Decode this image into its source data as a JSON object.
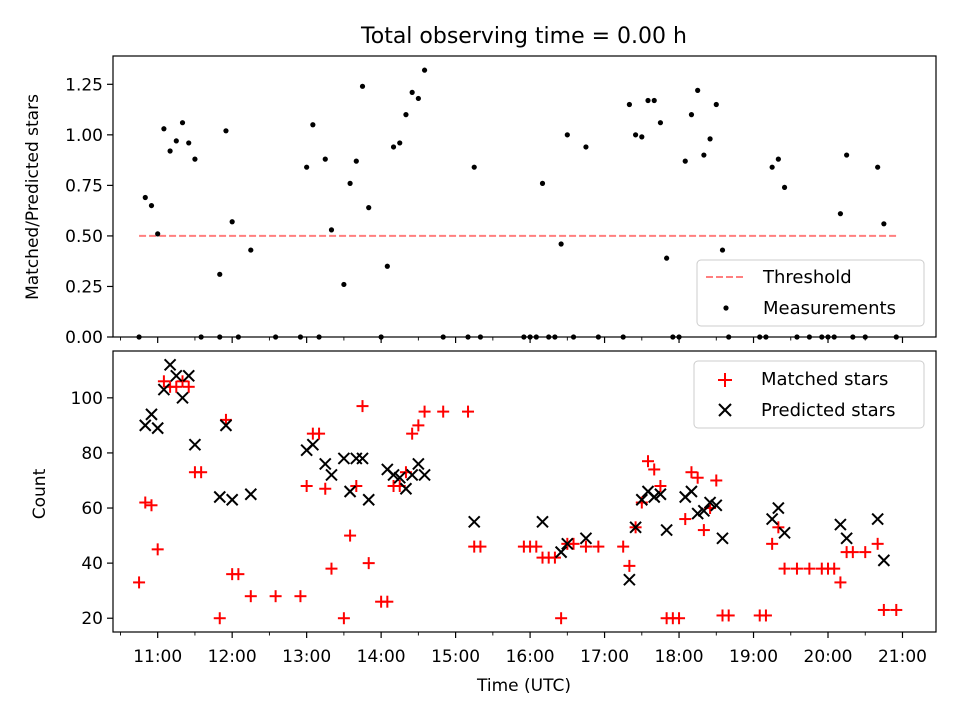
{
  "chart_data": [
    {
      "type": "scatter",
      "title": "Total observing time = 0.00 h",
      "xlabel": "",
      "ylabel": "Matched/Predicted stars",
      "ylim": [
        0,
        1.39
      ],
      "xlim": [
        "10:24",
        "21:27"
      ],
      "x_ticks": [
        "11:00",
        "12:00",
        "13:00",
        "14:00",
        "15:00",
        "16:00",
        "17:00",
        "18:00",
        "19:00",
        "20:00",
        "21:00"
      ],
      "y_ticks": [
        "0.00",
        "0.25",
        "0.50",
        "0.75",
        "1.00",
        "1.25"
      ],
      "grid": false,
      "legend_position": "lower-right",
      "series": [
        {
          "name": "Threshold",
          "style": "dashed-line",
          "color": "#ff7f7f",
          "points": [
            [
              "10:45",
              0.5
            ],
            [
              "20:55",
              0.5
            ]
          ]
        },
        {
          "name": "Measurements",
          "style": "dot",
          "color": "#000000",
          "points": [
            [
              "10:45",
              0.0
            ],
            [
              "10:50",
              0.69
            ],
            [
              "10:55",
              0.65
            ],
            [
              "11:00",
              0.51
            ],
            [
              "11:05",
              1.03
            ],
            [
              "11:10",
              0.92
            ],
            [
              "11:15",
              0.97
            ],
            [
              "11:20",
              1.06
            ],
            [
              "11:25",
              0.96
            ],
            [
              "11:30",
              0.88
            ],
            [
              "11:35",
              0.0
            ],
            [
              "11:50",
              0.31
            ],
            [
              "11:50",
              0.0
            ],
            [
              "11:55",
              1.02
            ],
            [
              "12:00",
              0.57
            ],
            [
              "12:05",
              0.0
            ],
            [
              "12:15",
              0.43
            ],
            [
              "12:35",
              0.0
            ],
            [
              "12:55",
              0.0
            ],
            [
              "13:00",
              0.84
            ],
            [
              "13:05",
              1.05
            ],
            [
              "13:10",
              0.0
            ],
            [
              "13:15",
              0.88
            ],
            [
              "13:20",
              0.53
            ],
            [
              "13:30",
              0.26
            ],
            [
              "13:35",
              0.76
            ],
            [
              "13:40",
              0.87
            ],
            [
              "13:45",
              1.24
            ],
            [
              "13:50",
              0.64
            ],
            [
              "14:00",
              0.0
            ],
            [
              "14:05",
              0.35
            ],
            [
              "14:10",
              0.94
            ],
            [
              "14:15",
              0.96
            ],
            [
              "14:20",
              1.1
            ],
            [
              "14:25",
              1.21
            ],
            [
              "14:30",
              1.18
            ],
            [
              "14:35",
              1.32
            ],
            [
              "14:50",
              0.0
            ],
            [
              "15:10",
              0.0
            ],
            [
              "15:15",
              0.84
            ],
            [
              "15:20",
              0.0
            ],
            [
              "15:55",
              0.0
            ],
            [
              "16:00",
              0.0
            ],
            [
              "16:05",
              0.0
            ],
            [
              "16:10",
              0.76
            ],
            [
              "16:15",
              0.0
            ],
            [
              "16:20",
              0.0
            ],
            [
              "16:25",
              0.46
            ],
            [
              "16:30",
              1.0
            ],
            [
              "16:35",
              0.0
            ],
            [
              "16:45",
              0.94
            ],
            [
              "16:55",
              0.0
            ],
            [
              "17:15",
              0.0
            ],
            [
              "17:20",
              1.15
            ],
            [
              "17:25",
              1.0
            ],
            [
              "17:30",
              0.99
            ],
            [
              "17:35",
              1.17
            ],
            [
              "17:40",
              1.17
            ],
            [
              "17:45",
              1.06
            ],
            [
              "17:50",
              0.39
            ],
            [
              "17:55",
              0.0
            ],
            [
              "18:00",
              0.0
            ],
            [
              "18:05",
              0.87
            ],
            [
              "18:10",
              1.1
            ],
            [
              "18:15",
              1.22
            ],
            [
              "18:20",
              0.9
            ],
            [
              "18:25",
              0.98
            ],
            [
              "18:30",
              1.15
            ],
            [
              "18:35",
              0.43
            ],
            [
              "18:40",
              0.0
            ],
            [
              "19:05",
              0.0
            ],
            [
              "19:10",
              0.0
            ],
            [
              "19:15",
              0.84
            ],
            [
              "19:20",
              0.88
            ],
            [
              "19:25",
              0.74
            ],
            [
              "19:35",
              0.0
            ],
            [
              "19:45",
              0.0
            ],
            [
              "19:55",
              0.0
            ],
            [
              "20:00",
              0.0
            ],
            [
              "20:05",
              0.0
            ],
            [
              "20:10",
              0.61
            ],
            [
              "20:15",
              0.9
            ],
            [
              "20:20",
              0.0
            ],
            [
              "20:30",
              0.0
            ],
            [
              "20:40",
              0.84
            ],
            [
              "20:45",
              0.56
            ],
            [
              "20:55",
              0.0
            ]
          ]
        }
      ]
    },
    {
      "type": "scatter",
      "title": "",
      "xlabel": "Time (UTC)",
      "ylabel": "Count",
      "ylim": [
        15,
        117
      ],
      "xlim": [
        "10:24",
        "21:27"
      ],
      "x_ticks": [
        "11:00",
        "12:00",
        "13:00",
        "14:00",
        "15:00",
        "16:00",
        "17:00",
        "18:00",
        "19:00",
        "20:00",
        "21:00"
      ],
      "y_ticks": [
        "20",
        "40",
        "60",
        "80",
        "100"
      ],
      "grid": false,
      "legend_position": "upper-right",
      "series": [
        {
          "name": "Matched stars",
          "style": "plus",
          "color": "#ff0000",
          "points": [
            [
              "10:45",
              33
            ],
            [
              "10:50",
              62
            ],
            [
              "10:55",
              61
            ],
            [
              "11:00",
              45
            ],
            [
              "11:05",
              106
            ],
            [
              "11:10",
              104
            ],
            [
              "11:15",
              104
            ],
            [
              "11:20",
              106
            ],
            [
              "11:25",
              104
            ],
            [
              "11:30",
              73
            ],
            [
              "11:35",
              73
            ],
            [
              "11:50",
              20
            ],
            [
              "11:55",
              92
            ],
            [
              "12:00",
              36
            ],
            [
              "12:05",
              36
            ],
            [
              "12:15",
              28
            ],
            [
              "12:35",
              28
            ],
            [
              "12:55",
              28
            ],
            [
              "13:00",
              68
            ],
            [
              "13:05",
              87
            ],
            [
              "13:10",
              87
            ],
            [
              "13:15",
              67
            ],
            [
              "13:20",
              38
            ],
            [
              "13:30",
              20
            ],
            [
              "13:35",
              50
            ],
            [
              "13:40",
              68
            ],
            [
              "13:45",
              97
            ],
            [
              "13:50",
              40
            ],
            [
              "14:00",
              26
            ],
            [
              "14:05",
              26
            ],
            [
              "14:10",
              68
            ],
            [
              "14:15",
              68
            ],
            [
              "14:20",
              73
            ],
            [
              "14:25",
              87
            ],
            [
              "14:30",
              90
            ],
            [
              "14:35",
              95
            ],
            [
              "14:50",
              95
            ],
            [
              "15:10",
              95
            ],
            [
              "15:15",
              46
            ],
            [
              "15:20",
              46
            ],
            [
              "15:55",
              46
            ],
            [
              "16:00",
              46
            ],
            [
              "16:05",
              46
            ],
            [
              "16:10",
              42
            ],
            [
              "16:15",
              42
            ],
            [
              "16:20",
              42
            ],
            [
              "16:25",
              20
            ],
            [
              "16:30",
              47
            ],
            [
              "16:35",
              47
            ],
            [
              "16:45",
              46
            ],
            [
              "16:55",
              46
            ],
            [
              "17:15",
              46
            ],
            [
              "17:20",
              39
            ],
            [
              "17:25",
              53
            ],
            [
              "17:30",
              62
            ],
            [
              "17:35",
              77
            ],
            [
              "17:40",
              74
            ],
            [
              "17:45",
              68
            ],
            [
              "17:50",
              20
            ],
            [
              "17:55",
              20
            ],
            [
              "18:00",
              20
            ],
            [
              "18:05",
              56
            ],
            [
              "18:10",
              73
            ],
            [
              "18:15",
              71
            ],
            [
              "18:20",
              52
            ],
            [
              "18:25",
              60
            ],
            [
              "18:30",
              70
            ],
            [
              "18:35",
              21
            ],
            [
              "18:40",
              21
            ],
            [
              "19:05",
              21
            ],
            [
              "19:10",
              21
            ],
            [
              "19:15",
              47
            ],
            [
              "19:20",
              53
            ],
            [
              "19:25",
              38
            ],
            [
              "19:35",
              38
            ],
            [
              "19:45",
              38
            ],
            [
              "19:55",
              38
            ],
            [
              "20:00",
              38
            ],
            [
              "20:05",
              38
            ],
            [
              "20:10",
              33
            ],
            [
              "20:15",
              44
            ],
            [
              "20:20",
              44
            ],
            [
              "20:30",
              44
            ],
            [
              "20:40",
              47
            ],
            [
              "20:45",
              23
            ],
            [
              "20:55",
              23
            ]
          ]
        },
        {
          "name": "Predicted stars",
          "style": "x",
          "color": "#000000",
          "points": [
            [
              "10:50",
              90
            ],
            [
              "10:55",
              94
            ],
            [
              "11:00",
              89
            ],
            [
              "11:05",
              103
            ],
            [
              "11:10",
              112
            ],
            [
              "11:15",
              108
            ],
            [
              "11:20",
              100
            ],
            [
              "11:25",
              108
            ],
            [
              "11:30",
              83
            ],
            [
              "11:50",
              64
            ],
            [
              "11:55",
              90
            ],
            [
              "12:00",
              63
            ],
            [
              "12:15",
              65
            ],
            [
              "13:00",
              81
            ],
            [
              "13:05",
              83
            ],
            [
              "13:15",
              76
            ],
            [
              "13:20",
              72
            ],
            [
              "13:30",
              78
            ],
            [
              "13:35",
              66
            ],
            [
              "13:40",
              78
            ],
            [
              "13:45",
              78
            ],
            [
              "13:50",
              63
            ],
            [
              "14:05",
              74
            ],
            [
              "14:10",
              72
            ],
            [
              "14:15",
              71
            ],
            [
              "14:20",
              67
            ],
            [
              "14:25",
              72
            ],
            [
              "14:30",
              76
            ],
            [
              "14:35",
              72
            ],
            [
              "15:15",
              55
            ],
            [
              "16:10",
              55
            ],
            [
              "16:25",
              44
            ],
            [
              "16:30",
              47
            ],
            [
              "16:45",
              49
            ],
            [
              "17:20",
              34
            ],
            [
              "17:25",
              53
            ],
            [
              "17:30",
              63
            ],
            [
              "17:35",
              66
            ],
            [
              "17:40",
              64
            ],
            [
              "17:45",
              65
            ],
            [
              "17:50",
              52
            ],
            [
              "18:05",
              64
            ],
            [
              "18:10",
              66
            ],
            [
              "18:15",
              58
            ],
            [
              "18:20",
              59
            ],
            [
              "18:25",
              62
            ],
            [
              "18:30",
              61
            ],
            [
              "18:35",
              49
            ],
            [
              "19:15",
              56
            ],
            [
              "19:20",
              60
            ],
            [
              "19:25",
              51
            ],
            [
              "20:10",
              54
            ],
            [
              "20:15",
              49
            ],
            [
              "20:40",
              56
            ],
            [
              "20:45",
              41
            ]
          ]
        }
      ]
    }
  ]
}
